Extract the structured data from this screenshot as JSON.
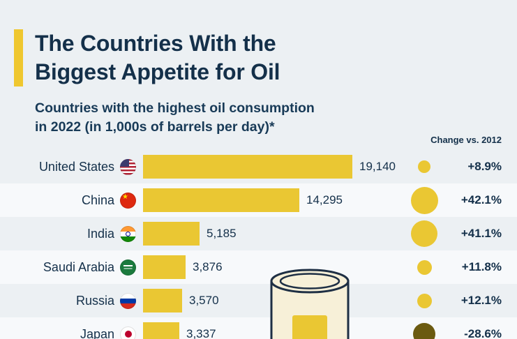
{
  "page": {
    "title_line1": "The Countries With the",
    "title_line2": "Biggest Appetite for Oil",
    "subtitle_line1": "Countries with the highest oil consumption",
    "subtitle_line2": "in 2022 (in 1,000s of barrels per day)*",
    "change_header": "Change vs. 2012"
  },
  "colors": {
    "accent_yellow": "#EAC733",
    "navy": "#14304A",
    "negative_olive": "#6B5A10",
    "background": "#ECF0F3"
  },
  "chart_data": {
    "type": "bar",
    "title": "The Countries With the Biggest Appetite for Oil",
    "subtitle": "Countries with the highest oil consumption in 2022 (in 1,000s of barrels per day)*",
    "unit": "1,000s of barrels per day",
    "change_column_label": "Change vs. 2012",
    "xlim": [
      0,
      19140
    ],
    "legend_position": "none",
    "grid": false,
    "rows": [
      {
        "country": "United States",
        "flag": "flag-united-states-icon",
        "value": 19140,
        "value_label": "19,140",
        "change_pct": 8.9,
        "change_label": "+8.9%"
      },
      {
        "country": "China",
        "flag": "flag-china-icon",
        "value": 14295,
        "value_label": "14,295",
        "change_pct": 42.1,
        "change_label": "+42.1%"
      },
      {
        "country": "India",
        "flag": "flag-india-icon",
        "value": 5185,
        "value_label": "5,185",
        "change_pct": 41.1,
        "change_label": "+41.1%"
      },
      {
        "country": "Saudi Arabia",
        "flag": "flag-saudi-arabia-icon",
        "value": 3876,
        "value_label": "3,876",
        "change_pct": 11.8,
        "change_label": "+11.8%"
      },
      {
        "country": "Russia",
        "flag": "flag-russia-icon",
        "value": 3570,
        "value_label": "3,570",
        "change_pct": 12.1,
        "change_label": "+12.1%"
      },
      {
        "country": "Japan",
        "flag": "flag-japan-icon",
        "value": 3337,
        "value_label": "3,337",
        "change_pct": -28.6,
        "change_label": "-28.6%"
      }
    ]
  }
}
